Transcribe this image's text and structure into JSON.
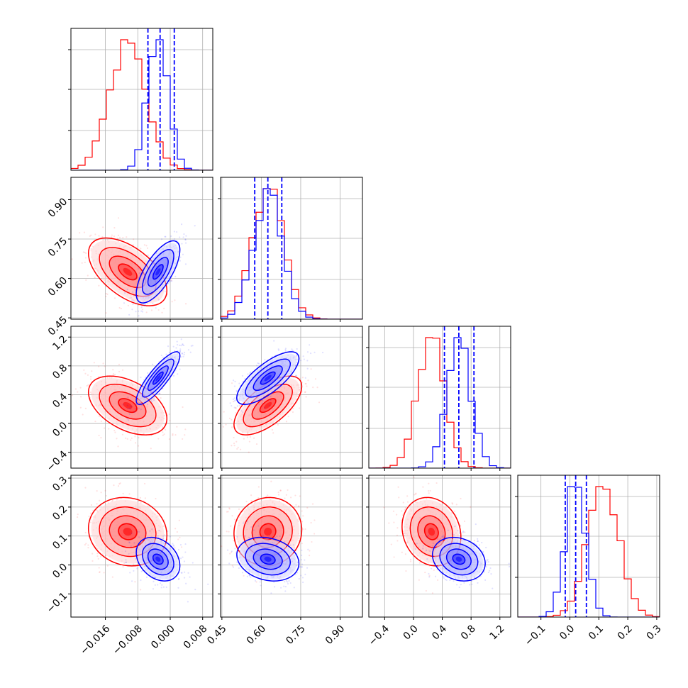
{
  "chart_data": {
    "type": "corner",
    "colors": {
      "red": "#ff0000",
      "blue": "#0000ff",
      "grid": "#b0b0b0"
    },
    "series": [
      {
        "color": "#ff0000",
        "means": [
          -0.0105,
          0.625,
          0.25,
          0.115
        ],
        "sds": [
          0.0045,
          0.06,
          0.19,
          0.055
        ],
        "correlations": {
          "p0_p1": -0.55,
          "p0_p2": -0.45,
          "p0_p3": -0.1,
          "p1_p2": 0.65,
          "p1_p3": 0.05,
          "p2_p3": -0.15
        }
      },
      {
        "color": "#0000ff",
        "means": [
          -0.003,
          0.625,
          0.63,
          0.02
        ],
        "sds": [
          0.0025,
          0.055,
          0.17,
          0.035
        ],
        "correlations": {
          "p0_p1": 0.7,
          "p0_p2": 0.85,
          "p0_p3": -0.3,
          "p1_p2": 0.75,
          "p1_p3": -0.2,
          "p2_p3": -0.2
        }
      }
    ],
    "quantile_lines": {
      "color": "#0000ff",
      "p0": [
        -0.0055,
        -0.0025,
        0.001
      ],
      "p1": [
        0.575,
        0.625,
        0.678
      ],
      "p2": [
        0.43,
        0.63,
        0.84
      ],
      "p3": [
        -0.016,
        0.02,
        0.057
      ]
    },
    "params": [
      {
        "range": [
          -0.0245,
          0.0105
        ],
        "ticks": [
          "−0.016",
          "−0.008",
          "0.000",
          "0.008"
        ],
        "tick_values": [
          -0.016,
          -0.008,
          0.0,
          0.008
        ]
      },
      {
        "range": [
          0.445,
          0.985
        ],
        "ticks": [
          "0.45",
          "0.60",
          "0.75",
          "0.90"
        ],
        "tick_values": [
          0.45,
          0.6,
          0.75,
          0.9
        ]
      },
      {
        "range": [
          -0.62,
          1.35
        ],
        "ticks": [
          "−0.4",
          "0.0",
          "0.4",
          "0.8",
          "1.2"
        ],
        "tick_values": [
          -0.4,
          0.0,
          0.4,
          0.8,
          1.2
        ]
      },
      {
        "range": [
          -0.18,
          0.31
        ],
        "ticks": [
          "−0.1",
          "0.0",
          "0.1",
          "0.2",
          "0.3"
        ],
        "tick_values": [
          -0.1,
          0.0,
          0.1,
          0.2,
          0.3
        ]
      }
    ],
    "grid": true
  }
}
